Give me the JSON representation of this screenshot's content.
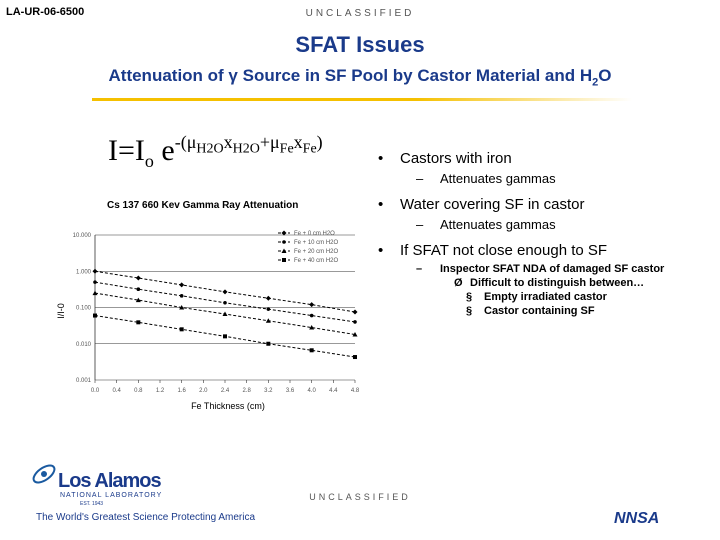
{
  "header": {
    "doc_id": "LA-UR-06-6500",
    "classification": "UNCLASSIFIED",
    "title": "SFAT Issues",
    "subtitle": {
      "text": "Attenuation of γ Source in SF Pool by Castor Material and H",
      "sub": "2",
      "tail": "O"
    }
  },
  "formula": {
    "lhs": "I=I",
    "lhs_sub": "o",
    "e": "e",
    "open": "-(μ",
    "sub1": "H2O",
    "x1": "x",
    "sub2": "H2O",
    "plus": "+μ",
    "sub3": "Fe",
    "x2": "x",
    "sub4": "Fe",
    "close": ")"
  },
  "chart_data": {
    "type": "line",
    "title": "Cs 137 660 Kev Gamma Ray Attenuation",
    "xlabel": "Fe Thickness (cm)",
    "ylabel": "I/I-0",
    "log_y": true,
    "x": [
      0,
      0.8,
      1.6,
      2.4,
      3.2,
      4.0,
      4.8
    ],
    "series": [
      {
        "name": "Fe + 0 cm H2O",
        "color": "#000000",
        "marker": "diamond",
        "values": [
          1,
          0.65,
          0.42,
          0.27,
          0.18,
          0.12,
          0.075
        ]
      },
      {
        "name": "Fe + 10 cm H2O",
        "color": "#000000",
        "marker": "circle",
        "values": [
          0.5,
          0.32,
          0.21,
          0.135,
          0.09,
          0.06,
          0.04
        ]
      },
      {
        "name": "Fe + 20 cm H2O",
        "color": "#000000",
        "marker": "triangle",
        "values": [
          0.25,
          0.16,
          0.1,
          0.066,
          0.043,
          0.028,
          0.018
        ]
      },
      {
        "name": "Fe + 40 cm H2O",
        "color": "#000000",
        "marker": "square",
        "values": [
          0.06,
          0.039,
          0.025,
          0.016,
          0.01,
          0.0066,
          0.0043
        ]
      }
    ],
    "xlim": [
      0,
      4.8
    ],
    "xticks": [
      {
        "value": 0,
        "label": "0.0"
      },
      0.4,
      0.8,
      1.2,
      1.6,
      {
        "value": 2,
        "label": "2.0"
      },
      2.4,
      2.8,
      3.2,
      3.6,
      {
        "value": 4,
        "label": "4.0"
      },
      4.4,
      4.8
    ],
    "ylim": [
      0.001,
      10
    ],
    "yticks": [
      {
        "value": 10,
        "label": "10.000"
      },
      {
        "value": 1,
        "label": "1.000"
      },
      {
        "value": 0.1,
        "label": "0.100"
      },
      {
        "value": 0.01,
        "label": "0.010"
      },
      {
        "value": 0.001,
        "label": "0.001"
      }
    ],
    "grid": true
  },
  "bullets": [
    {
      "text": "Castors with iron",
      "subs": [
        {
          "text": "Attenuates gammas"
        }
      ]
    },
    {
      "text": "Water covering SF in castor",
      "subs": [
        {
          "text": "Attenuates gammas"
        }
      ]
    },
    {
      "text": "If SFAT not close enough to SF",
      "subs": [
        {
          "text": "Inspector SFAT NDA of damaged SF castor",
          "subs": [
            {
              "text": "Difficult to distinguish between…",
              "subs": [
                "Empty irradiated castor",
                "Castor containing SF"
              ]
            }
          ]
        }
      ]
    }
  ],
  "footer": {
    "classification": "UNCLASSIFIED",
    "lab": "Los Alamos",
    "lab_sub": "NATIONAL LABORATORY",
    "est": "EST. 1943",
    "tagline": "The World's Greatest Science Protecting America",
    "nnsa": "NNSA"
  }
}
